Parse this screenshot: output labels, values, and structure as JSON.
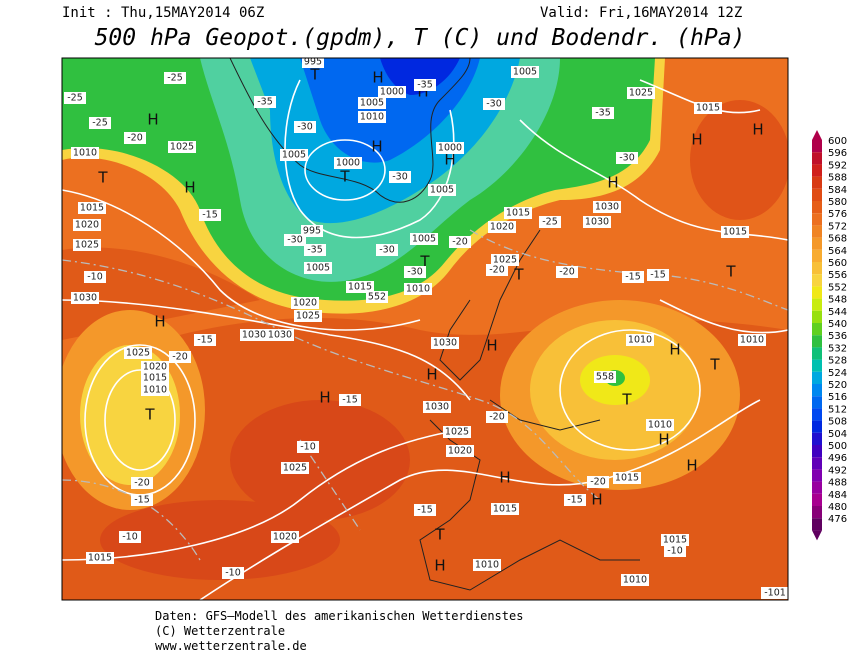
{
  "header": {
    "init": "Init : Thu,15MAY2014 06Z",
    "valid": "Valid: Fri,16MAY2014 12Z",
    "title": "500 hPa Geopot.(gpdm), T (C) und Bodendr. (hPa)"
  },
  "footer": [
    "Daten: GFS–Modell des amerikanischen Wetterdienstes",
    "(C) Wetterzentrale",
    "www.wetterzentrale.de"
  ],
  "colorbar": {
    "values": [
      600,
      596,
      592,
      588,
      584,
      580,
      576,
      572,
      568,
      564,
      560,
      556,
      552,
      548,
      544,
      540,
      536,
      532,
      528,
      524,
      520,
      516,
      512,
      508,
      504,
      500,
      496,
      492,
      488,
      484,
      480,
      476
    ],
    "colors": [
      "#b0004a",
      "#c0102a",
      "#d0201c",
      "#d83a14",
      "#e04c14",
      "#e65e18",
      "#ec7020",
      "#f08424",
      "#f4982a",
      "#f8ac30",
      "#f8c038",
      "#f8d440",
      "#f0e818",
      "#c8ec10",
      "#98e010",
      "#60d020",
      "#30c040",
      "#10c078",
      "#00c0b0",
      "#00a8e0",
      "#0088f0",
      "#0068f0",
      "#0048f0",
      "#0028e0",
      "#2010d0",
      "#4000c0",
      "#6000b8",
      "#8000b0",
      "#9800a0",
      "#a80090",
      "#880078",
      "#600060"
    ]
  },
  "map": {
    "labels": [
      "H",
      "T",
      "H",
      "T",
      "H",
      "H",
      "H",
      "T",
      "H",
      "H",
      "T",
      "H",
      "T",
      "H",
      "H",
      "H",
      "T",
      "T",
      "H",
      "H",
      "H",
      "T",
      "T",
      "H",
      "H",
      "H",
      "H",
      "T",
      "H",
      "1025",
      "1010",
      "1015",
      "1020",
      "1025",
      "1030",
      "1030",
      "1030",
      "1025",
      "1020",
      "1015",
      "1010",
      "1030",
      "1030",
      "1025",
      "1020",
      "1025",
      "1020",
      "1015",
      "1010",
      "1010",
      "1015",
      "1015",
      "1010",
      "1010",
      "1015",
      "1010",
      "1015",
      "1030",
      "1030",
      "1025",
      "1020",
      "1015",
      "1005",
      "1000",
      "1000",
      "1005",
      "1005",
      "1010",
      "1000",
      "1005",
      "1025",
      "1015",
      "1005",
      "1015",
      "1010",
      "1005",
      "1020",
      "1025",
      "995",
      "995",
      "-25",
      "-25",
      "-25",
      "-20",
      "-15",
      "-10",
      "-15",
      "-20",
      "-15",
      "-10",
      "-20",
      "-20",
      "-20",
      "-15",
      "-15",
      "-20",
      "-25",
      "-30",
      "-35",
      "-30",
      "-35",
      "-35",
      "-30",
      "-30",
      "-30",
      "-35",
      "-30",
      "-30",
      "-20",
      "-15",
      "-10",
      "-10",
      "-20",
      "-15",
      "-15",
      "-10",
      "-101",
      "552",
      "558"
    ]
  }
}
